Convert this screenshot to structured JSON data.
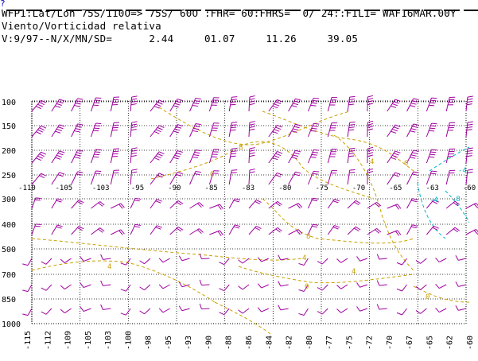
{
  "menu_marker": "?",
  "header": {
    "line1": "WFP1:Lat/Lon 75S/110O=> 75S/ 60O :FHR= 60:FHRS=  0/ 24::FIL1= WAF16MAR.00Y",
    "line2": "Viento/Vorticidad relativa",
    "line3": "V:9/97--N/X/MN/SD=      2.44     01.07     11.26     39.05"
  },
  "colors": {
    "wind_barbs": "#a000a0",
    "contours": "#c8a000",
    "negative_contours": "#00b4c8",
    "grid": "#000000",
    "text": "#000000"
  },
  "chart_data": {
    "type": "cross-section",
    "title": "Viento/Vorticidad relativa",
    "y_axis": {
      "levels": [
        "100",
        "150",
        "200",
        "250",
        "300",
        "400",
        "500",
        "700",
        "850",
        "1000"
      ],
      "scale": "log-pressure"
    },
    "x_axis": {
      "labels": [
        "-115",
        "-112",
        "-109",
        "-105",
        "-103",
        "-100",
        "-98",
        "-95",
        "-93",
        "-90",
        "-88",
        "-86",
        "-84",
        "-82",
        "-80",
        "-77",
        "-75",
        "-72",
        "-70",
        "-67",
        "-65",
        "-62",
        "-60"
      ]
    },
    "inner_longitude_labels": [
      "-110",
      "-105",
      "-103",
      "-95",
      "-90",
      "-85",
      "-83",
      "-80",
      "-75",
      "-70",
      "-65",
      "-63",
      "-60"
    ],
    "contour_labels": [
      "8",
      "0",
      "4",
      "0",
      "8",
      "4",
      "0",
      "4",
      "4",
      "0",
      "-8",
      "-4",
      "-4"
    ],
    "grid": true
  }
}
